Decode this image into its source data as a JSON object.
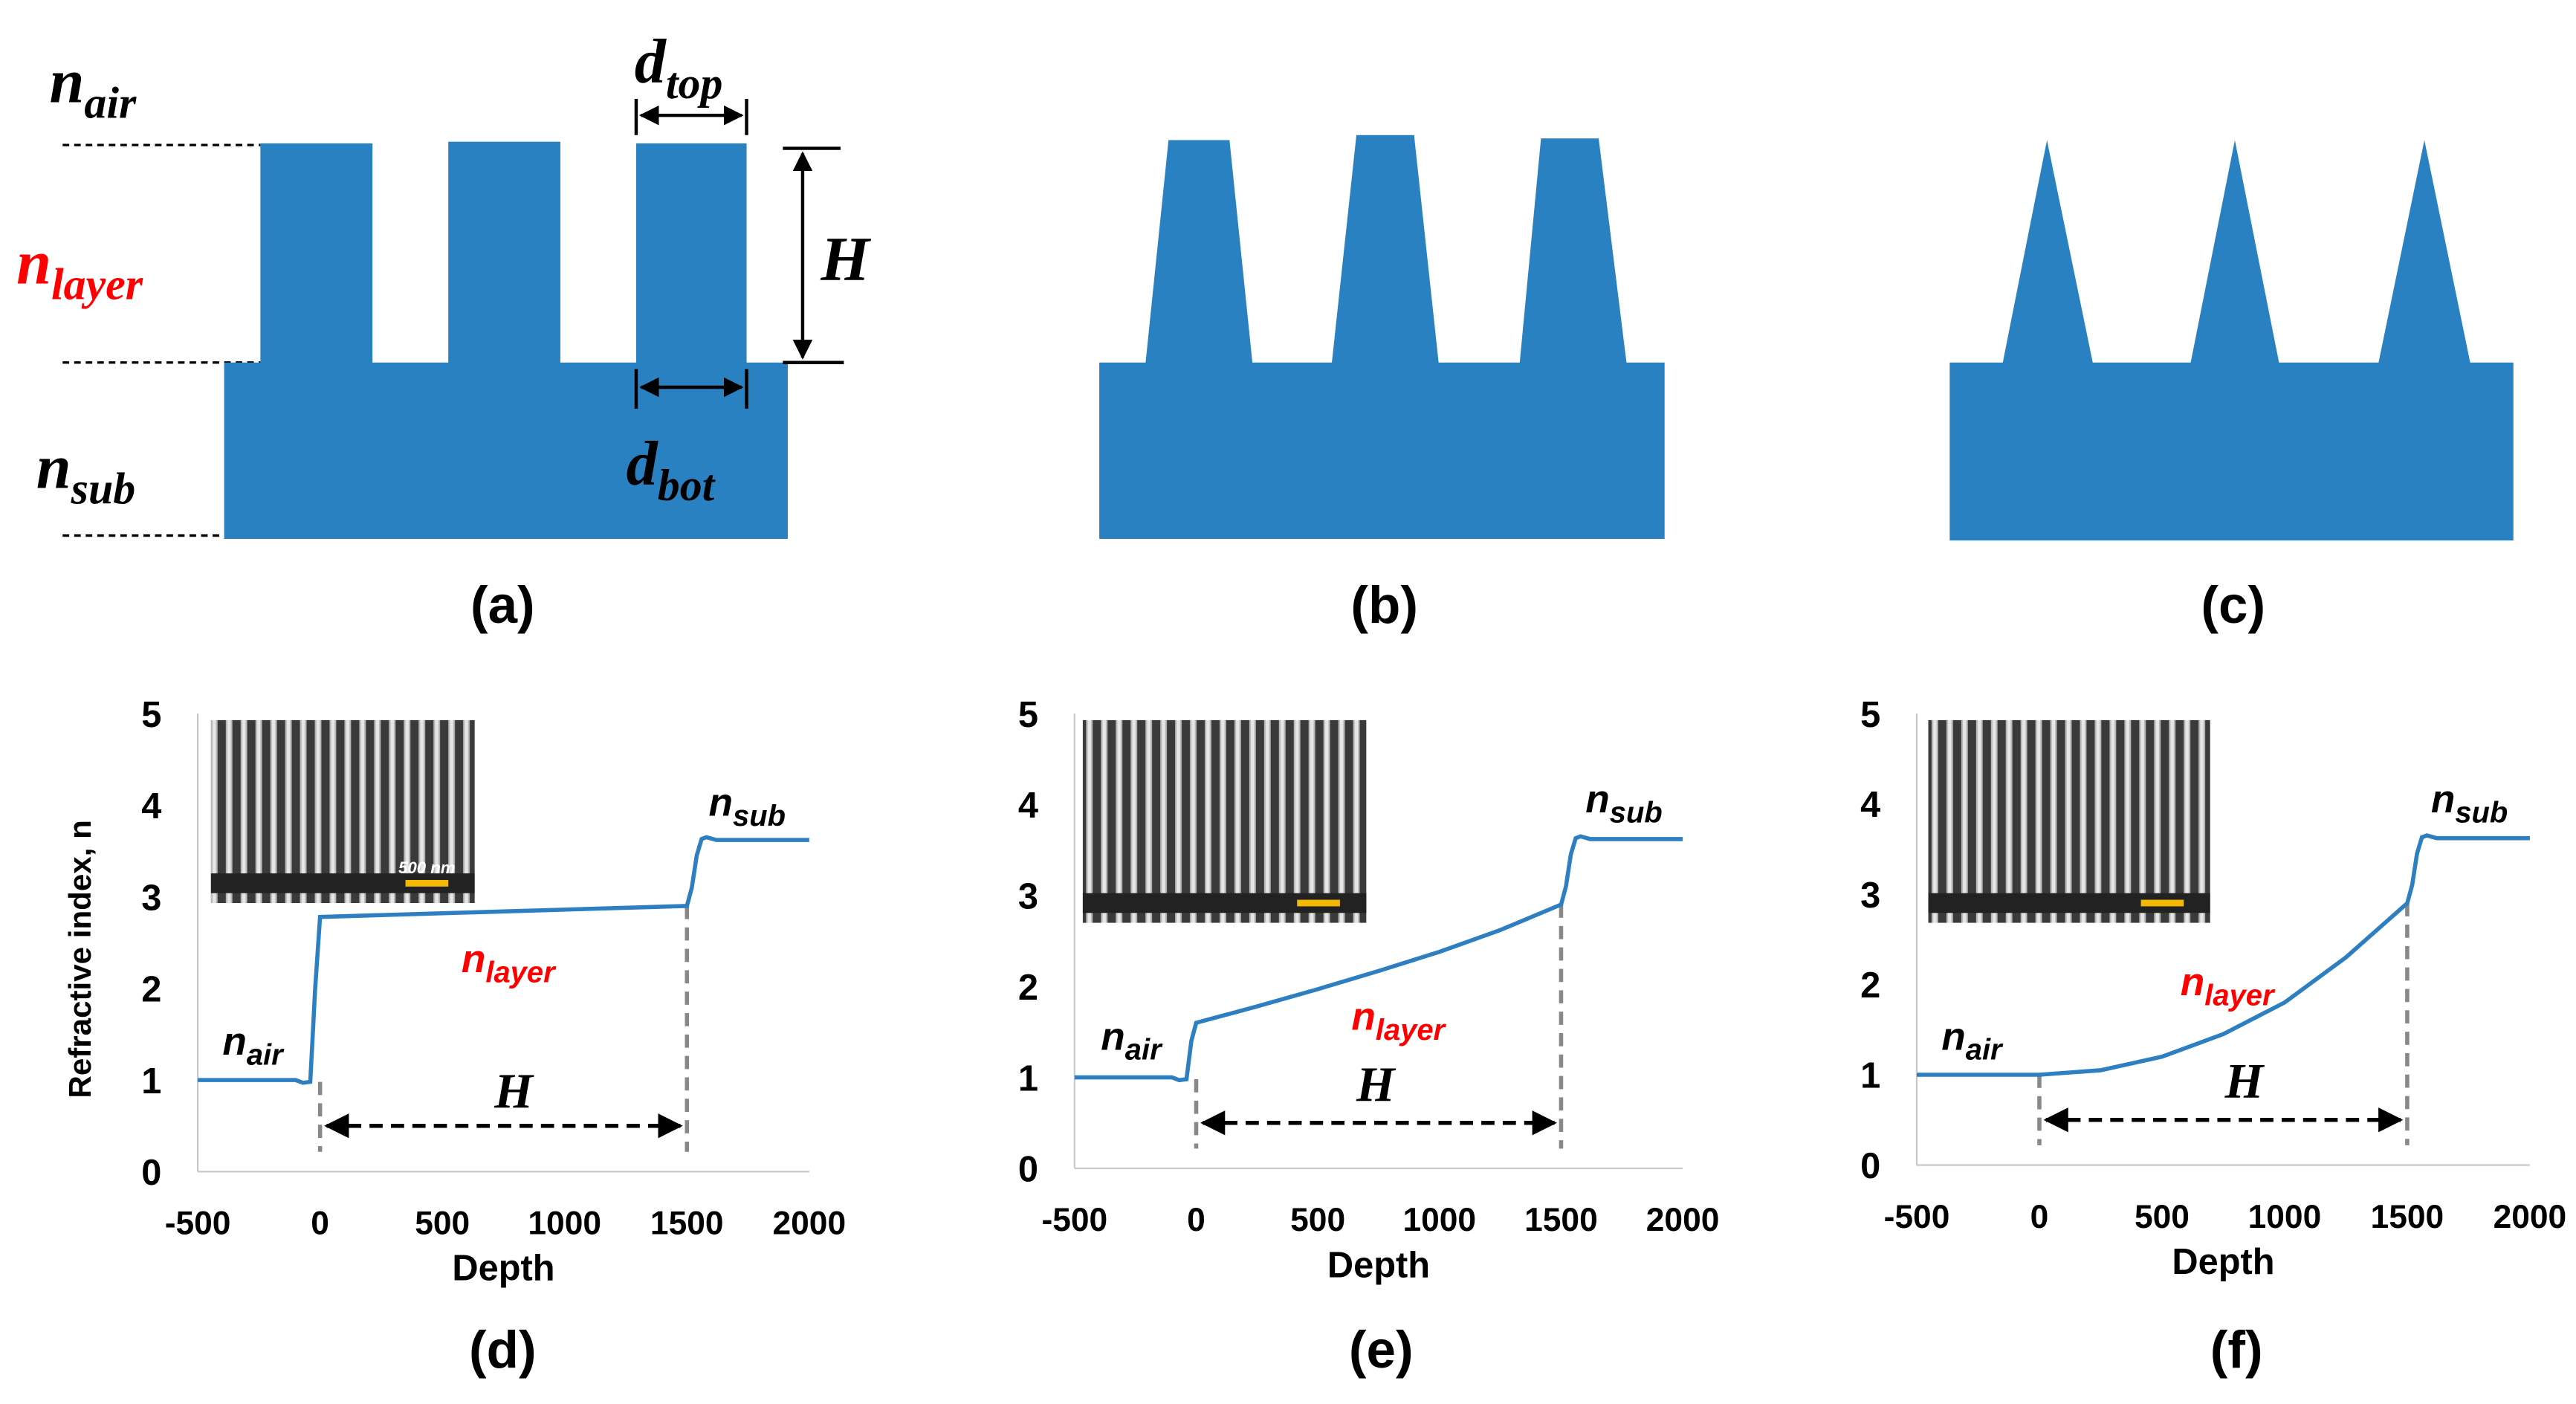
{
  "diagrams": [
    {
      "label": "(a)",
      "annotations": [
        {
          "text": "n",
          "sub": "air"
        },
        {
          "text": "n",
          "sub": "layer",
          "color": "#ff0000"
        },
        {
          "text": "n",
          "sub": "sub"
        },
        {
          "text": "d",
          "sub": "top"
        },
        {
          "text": "d",
          "sub": "bot"
        },
        {
          "text": "H"
        }
      ]
    },
    {
      "label": "(b)"
    },
    {
      "label": "(c)"
    }
  ],
  "chart_data": [
    {
      "type": "line",
      "label": "(d)",
      "xlabel": "Depth",
      "ylabel": "Refractive index, n",
      "color": "#2e7fc1",
      "xlim": [
        -500,
        2000
      ],
      "xticks": [
        -500,
        0,
        500,
        1000,
        1500,
        2000
      ],
      "ylim": [
        0,
        5
      ],
      "yticks": [
        0,
        1,
        2,
        3,
        4,
        5
      ],
      "x": [
        -500,
        -100,
        -70,
        -40,
        -20,
        0,
        1500,
        1520,
        1540,
        1560,
        1580,
        1620,
        2000
      ],
      "values": [
        1,
        1,
        0.97,
        0.98,
        2.0,
        2.78,
        2.9,
        3.1,
        3.45,
        3.63,
        3.65,
        3.62,
        3.62
      ],
      "vlines": [
        0,
        1500
      ],
      "inset_label": "500 nm",
      "annotations": [
        {
          "text": "n",
          "sub": "air"
        },
        {
          "text": "n",
          "sub": "layer",
          "color": "#ff0000"
        },
        {
          "text": "n",
          "sub": "sub"
        },
        {
          "text": "H"
        }
      ]
    },
    {
      "type": "line",
      "label": "(e)",
      "xlabel": "Depth",
      "color": "#2e7fc1",
      "xlim": [
        -500,
        2000
      ],
      "xticks": [
        -500,
        0,
        500,
        1000,
        1500,
        2000
      ],
      "ylim": [
        0,
        5
      ],
      "yticks": [
        0,
        1,
        2,
        3,
        4,
        5
      ],
      "x": [
        -500,
        -100,
        -70,
        -40,
        -20,
        0,
        250,
        500,
        750,
        1000,
        1250,
        1500,
        1520,
        1540,
        1560,
        1580,
        1620,
        2000
      ],
      "values": [
        1,
        1,
        0.97,
        0.98,
        1.4,
        1.6,
        1.78,
        1.97,
        2.17,
        2.38,
        2.62,
        2.9,
        3.1,
        3.45,
        3.63,
        3.65,
        3.62,
        3.62
      ],
      "vlines": [
        0,
        1500
      ],
      "annotations": [
        {
          "text": "n",
          "sub": "air"
        },
        {
          "text": "n",
          "sub": "layer",
          "color": "#ff0000"
        },
        {
          "text": "n",
          "sub": "sub"
        },
        {
          "text": "H"
        }
      ]
    },
    {
      "type": "line",
      "label": "(f)",
      "xlabel": "Depth",
      "color": "#2e7fc1",
      "xlim": [
        -500,
        2000
      ],
      "xticks": [
        -500,
        0,
        500,
        1000,
        1500,
        2000
      ],
      "ylim": [
        0,
        5
      ],
      "yticks": [
        0,
        1,
        2,
        3,
        4,
        5
      ],
      "x": [
        -500,
        0,
        250,
        500,
        750,
        1000,
        1250,
        1500,
        1520,
        1540,
        1560,
        1580,
        1620,
        2000
      ],
      "values": [
        1,
        1,
        1.05,
        1.2,
        1.45,
        1.8,
        2.3,
        2.9,
        3.1,
        3.45,
        3.63,
        3.65,
        3.62,
        3.62
      ],
      "vlines": [
        0,
        1500
      ],
      "annotations": [
        {
          "text": "n",
          "sub": "air"
        },
        {
          "text": "n",
          "sub": "layer",
          "color": "#ff0000"
        },
        {
          "text": "n",
          "sub": "sub"
        },
        {
          "text": "H"
        }
      ]
    }
  ]
}
